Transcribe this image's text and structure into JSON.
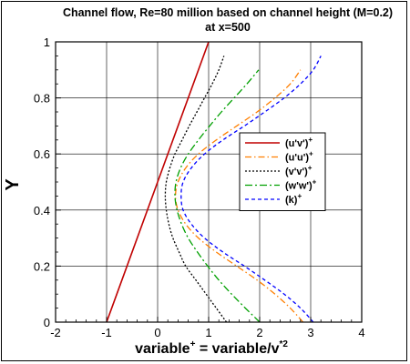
{
  "chart_data": {
    "type": "line",
    "title": "Channel flow, Re=80 million based on channel height (M=0.2)",
    "subtitle": "at x=500",
    "xlabel": {
      "base": "variable",
      "sup1": "+",
      "middle": " = variable/v",
      "sup2": "*2"
    },
    "ylabel": "Y",
    "xlim": [
      -2,
      4
    ],
    "ylim": [
      0,
      1
    ],
    "xticks": [
      -2,
      -1,
      0,
      1,
      2,
      3,
      4
    ],
    "yticks": [
      0,
      0.2,
      0.4,
      0.6,
      0.8,
      1
    ],
    "xtick_labels": [
      "-2",
      "-1",
      "0",
      "1",
      "2",
      "3",
      "4"
    ],
    "ytick_labels": [
      "0",
      "0.2",
      "0.4",
      "0.6",
      "0.8",
      "1"
    ],
    "grid": true,
    "legend_position": "right",
    "series": [
      {
        "name": "(u'v')",
        "sup": "+",
        "color": "#c00000",
        "dash": "",
        "x": [
          -1.0,
          1.0
        ],
        "y": [
          0.0,
          1.0
        ]
      },
      {
        "name": "(u'u')",
        "sup": "+",
        "color": "#ff7f00",
        "dash": "7,3,1.5,3",
        "x": [
          2.85,
          2.6,
          2.3,
          1.95,
          1.55,
          1.15,
          0.8,
          0.55,
          0.4,
          0.35,
          0.4,
          0.55,
          0.8,
          1.15,
          1.55,
          1.95,
          2.3,
          2.6,
          2.8
        ],
        "y": [
          0.0,
          0.05,
          0.1,
          0.15,
          0.2,
          0.25,
          0.3,
          0.35,
          0.4,
          0.45,
          0.5,
          0.55,
          0.6,
          0.65,
          0.7,
          0.75,
          0.8,
          0.85,
          0.9
        ]
      },
      {
        "name": "(v'v')",
        "sup": "+",
        "color": "#000000",
        "dash": "2,2",
        "x": [
          1.35,
          1.15,
          0.95,
          0.75,
          0.55,
          0.42,
          0.3,
          0.22,
          0.17,
          0.15,
          0.17,
          0.24,
          0.34,
          0.48,
          0.62,
          0.77,
          0.92,
          1.07,
          1.2,
          1.3
        ],
        "y": [
          0.0,
          0.05,
          0.1,
          0.15,
          0.2,
          0.25,
          0.3,
          0.35,
          0.4,
          0.45,
          0.5,
          0.55,
          0.6,
          0.65,
          0.7,
          0.75,
          0.8,
          0.85,
          0.9,
          0.95
        ]
      },
      {
        "name": "(w'w')",
        "sup": "+",
        "color": "#00a000",
        "dash": "8,3,2,3",
        "x": [
          2.0,
          1.72,
          1.45,
          1.2,
          0.98,
          0.78,
          0.6,
          0.47,
          0.38,
          0.34,
          0.36,
          0.45,
          0.6,
          0.8,
          1.02,
          1.25,
          1.5,
          1.75,
          1.98
        ],
        "y": [
          0.0,
          0.05,
          0.1,
          0.15,
          0.2,
          0.25,
          0.3,
          0.35,
          0.4,
          0.45,
          0.5,
          0.55,
          0.6,
          0.65,
          0.7,
          0.75,
          0.8,
          0.85,
          0.9
        ]
      },
      {
        "name": "(k)",
        "sup": "+",
        "color": "#0000ff",
        "dash": "4,3",
        "x": [
          3.05,
          2.8,
          2.48,
          2.1,
          1.7,
          1.28,
          0.92,
          0.66,
          0.5,
          0.46,
          0.5,
          0.66,
          0.92,
          1.28,
          1.7,
          2.1,
          2.48,
          2.8,
          3.05,
          3.2
        ],
        "y": [
          0.0,
          0.05,
          0.1,
          0.15,
          0.2,
          0.25,
          0.3,
          0.35,
          0.4,
          0.45,
          0.5,
          0.55,
          0.6,
          0.65,
          0.7,
          0.75,
          0.8,
          0.85,
          0.9,
          0.95
        ]
      }
    ]
  }
}
